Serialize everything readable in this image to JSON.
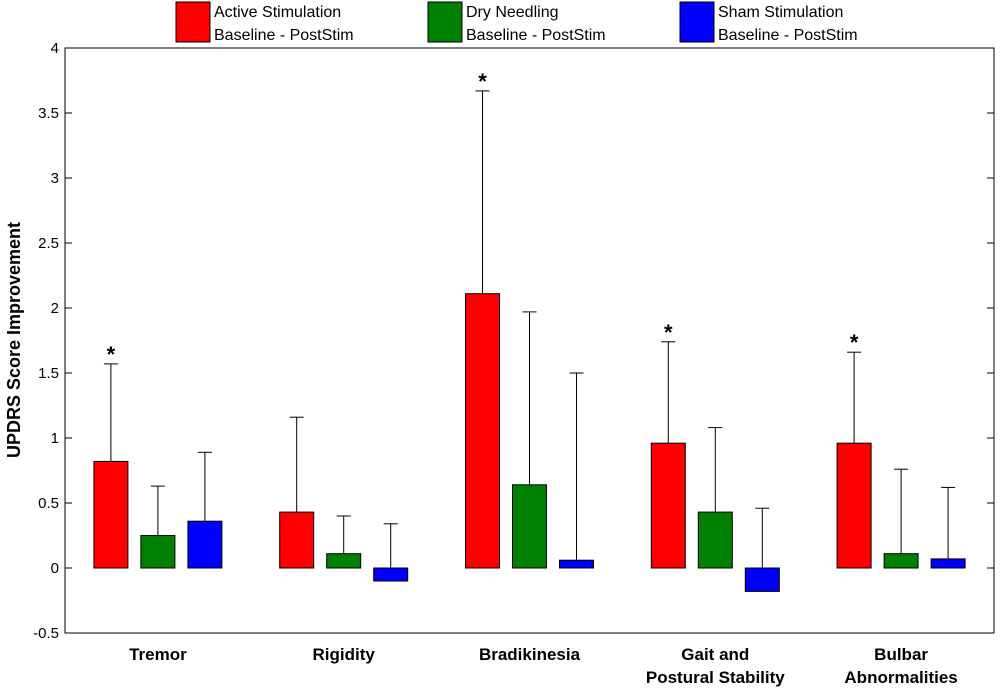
{
  "chart_data": {
    "type": "bar",
    "title": "",
    "xlabel": "",
    "ylabel": "UPDRS Score Improvement",
    "ylim": [
      -0.5,
      4
    ],
    "yticks": [
      "-0.5",
      "0",
      "0.5",
      "1",
      "1.5",
      "2",
      "2.5",
      "3",
      "3.5",
      "4"
    ],
    "grid": false,
    "legend_position": "top",
    "categories": [
      [
        "Tremor"
      ],
      [
        "Rigidity"
      ],
      [
        "Bradikinesia"
      ],
      [
        "Gait and",
        "Postural Stability"
      ],
      [
        "Bulbar",
        "Abnormalities"
      ]
    ],
    "series": [
      {
        "name": "Active Stimulation",
        "subtitle": "Baseline - PostStim",
        "color": "#ff0000",
        "values": [
          0.82,
          0.43,
          2.11,
          0.96,
          0.96
        ],
        "error_upper": [
          1.57,
          1.16,
          3.67,
          1.74,
          1.66
        ]
      },
      {
        "name": "Dry Needling",
        "subtitle": "Baseline - PostStim",
        "color": "#008000",
        "values": [
          0.25,
          0.11,
          0.64,
          0.43,
          0.11
        ],
        "error_upper": [
          0.63,
          0.4,
          1.97,
          1.08,
          0.76
        ]
      },
      {
        "name": "Sham Stimulation",
        "subtitle": "Baseline - PostStim",
        "color": "#0000ff",
        "values": [
          0.36,
          -0.1,
          0.06,
          -0.18,
          0.07
        ],
        "error_upper": [
          0.89,
          0.34,
          1.5,
          0.46,
          0.62
        ]
      }
    ],
    "annotations": [
      {
        "text": "*",
        "category_index": 0,
        "series_index": 0
      },
      {
        "text": "*",
        "category_index": 2,
        "series_index": 0
      },
      {
        "text": "*",
        "category_index": 3,
        "series_index": 0
      },
      {
        "text": "*",
        "category_index": 4,
        "series_index": 0
      }
    ]
  }
}
